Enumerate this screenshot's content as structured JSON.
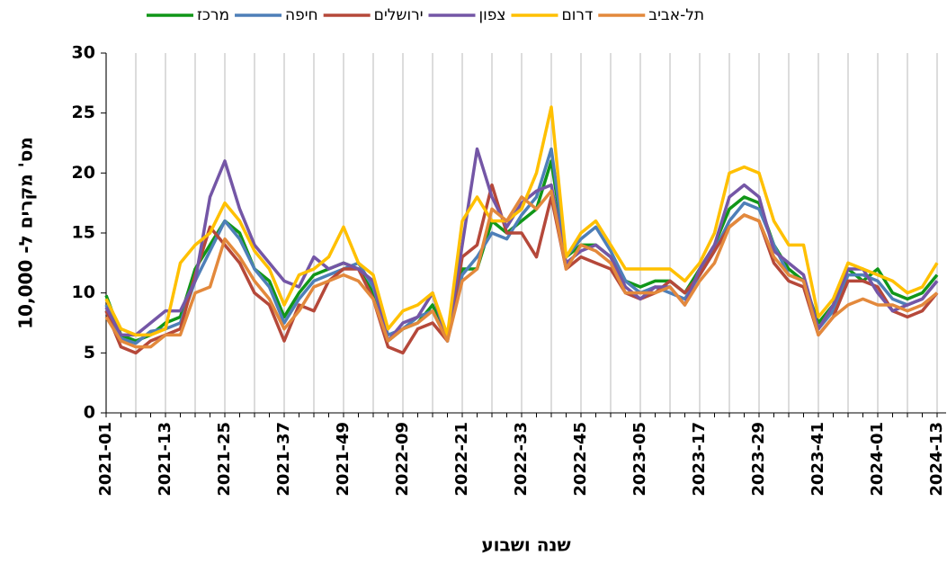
{
  "chart_data": {
    "type": "line",
    "xlabel": "שנה ושבוע",
    "ylabel": "מס' מקרים ל- 10,000",
    "categories": [
      "2021-01",
      null,
      null,
      null,
      "2021-13",
      null,
      null,
      null,
      "2021-25",
      null,
      null,
      null,
      "2021-37",
      null,
      null,
      null,
      "2021-49",
      null,
      null,
      null,
      "2022-09",
      null,
      null,
      null,
      "2022-21",
      null,
      null,
      null,
      "2022-33",
      null,
      null,
      null,
      "2022-45",
      null,
      null,
      null,
      "2023-05",
      null,
      null,
      null,
      "2023-17",
      null,
      null,
      null,
      "2023-29",
      null,
      null,
      null,
      "2023-41",
      null,
      null,
      null,
      "2024-01",
      null,
      null,
      null,
      "2024-13"
    ],
    "ylim": [
      0,
      30
    ],
    "yticks": [
      0,
      5,
      10,
      15,
      20,
      25,
      30
    ],
    "series": [
      {
        "name": "מרכז",
        "color": "#109618",
        "values": [
          9.8,
          6.5,
          6,
          6.5,
          7.5,
          8,
          12,
          14,
          16,
          15,
          12,
          11,
          8,
          10,
          11.5,
          12,
          12.5,
          12,
          10,
          6,
          7,
          7.5,
          9,
          6,
          12,
          12,
          16,
          15,
          16,
          17,
          21,
          13,
          14,
          14,
          13,
          11,
          10.5,
          11,
          11,
          10,
          12,
          14,
          17,
          18,
          17.5,
          14,
          12,
          11,
          7.5,
          9,
          12,
          11,
          12,
          10,
          9.5,
          10,
          11.5
        ]
      },
      {
        "name": "חיפה",
        "color": "#4e7fb8",
        "values": [
          9,
          6.2,
          5.8,
          6.8,
          7,
          7.5,
          11,
          13.5,
          16,
          14.5,
          12,
          10.5,
          7.5,
          9.5,
          11,
          11.5,
          12,
          12.5,
          10.5,
          6.5,
          7,
          8,
          8.5,
          6,
          11.5,
          13,
          15,
          14.5,
          16.5,
          18,
          22,
          13,
          14.5,
          15.5,
          13.5,
          11,
          10,
          10.5,
          10,
          9.5,
          11.5,
          13.5,
          16,
          17.5,
          17,
          14,
          11.5,
          11,
          7,
          8.5,
          11.5,
          11.5,
          11,
          9.5,
          9,
          9.5,
          11
        ]
      },
      {
        "name": "ירושלים",
        "color": "#b5483a",
        "values": [
          8.5,
          5.5,
          5,
          6,
          6.5,
          7,
          11.5,
          15.5,
          14,
          12.5,
          10,
          9,
          6,
          9,
          8.5,
          11,
          12,
          12,
          9.5,
          5.5,
          5,
          7,
          7.5,
          6,
          13,
          14,
          19,
          15,
          15,
          13,
          18,
          12,
          13,
          12.5,
          12,
          10,
          9.5,
          10,
          11,
          10,
          11.5,
          13.5,
          15.5,
          16.5,
          16,
          12.5,
          11,
          10.5,
          6.5,
          8,
          11,
          11,
          10.5,
          8.5,
          8,
          8.5,
          10
        ]
      },
      {
        "name": "צפון",
        "color": "#7456a6",
        "values": [
          8.8,
          6.5,
          6.5,
          7.5,
          8.5,
          8.5,
          11,
          18,
          21,
          17,
          14,
          12.5,
          11,
          10.5,
          13,
          12,
          12.5,
          12,
          11,
          6,
          7.5,
          8,
          10,
          6,
          14,
          22,
          18,
          15.5,
          17.5,
          18.5,
          19,
          12.5,
          13.5,
          14,
          13,
          10.5,
          9.5,
          10.5,
          10.5,
          9,
          12,
          14,
          18,
          19,
          18,
          13.5,
          12.5,
          11.5,
          7,
          9,
          12,
          12,
          10,
          8.5,
          9,
          9.5,
          11
        ]
      },
      {
        "name": "דרום",
        "color": "#ffc000",
        "values": [
          9.5,
          7,
          6.5,
          6.5,
          7,
          12.5,
          14,
          15,
          17.5,
          16,
          13.5,
          12,
          9,
          11.5,
          12,
          13,
          15.5,
          12.5,
          11.5,
          7,
          8.5,
          9,
          10,
          6.5,
          16,
          18,
          16,
          16,
          17,
          20,
          25.5,
          13,
          15,
          16,
          14,
          12,
          12,
          12,
          12,
          11,
          12.5,
          15,
          20,
          20.5,
          20,
          16,
          14,
          14,
          8,
          9.5,
          12.5,
          12,
          11.5,
          11,
          10,
          10.5,
          12.5
        ]
      },
      {
        "name": "תל-אביב",
        "color": "#e3893c",
        "values": [
          8,
          6,
          5.5,
          5.5,
          6.5,
          6.5,
          10,
          10.5,
          14.5,
          13,
          11,
          9.5,
          7,
          8.5,
          10.5,
          11,
          11.5,
          11,
          9.5,
          6,
          7,
          7.5,
          8.5,
          6,
          11,
          12,
          17,
          16,
          18,
          17,
          18.5,
          12,
          14,
          13.5,
          12.5,
          10,
          10,
          10,
          10.5,
          9,
          11,
          12.5,
          15.5,
          16.5,
          16,
          13,
          11.5,
          11,
          6.5,
          8,
          9,
          9.5,
          9,
          9,
          8.5,
          9,
          10
        ]
      }
    ]
  }
}
